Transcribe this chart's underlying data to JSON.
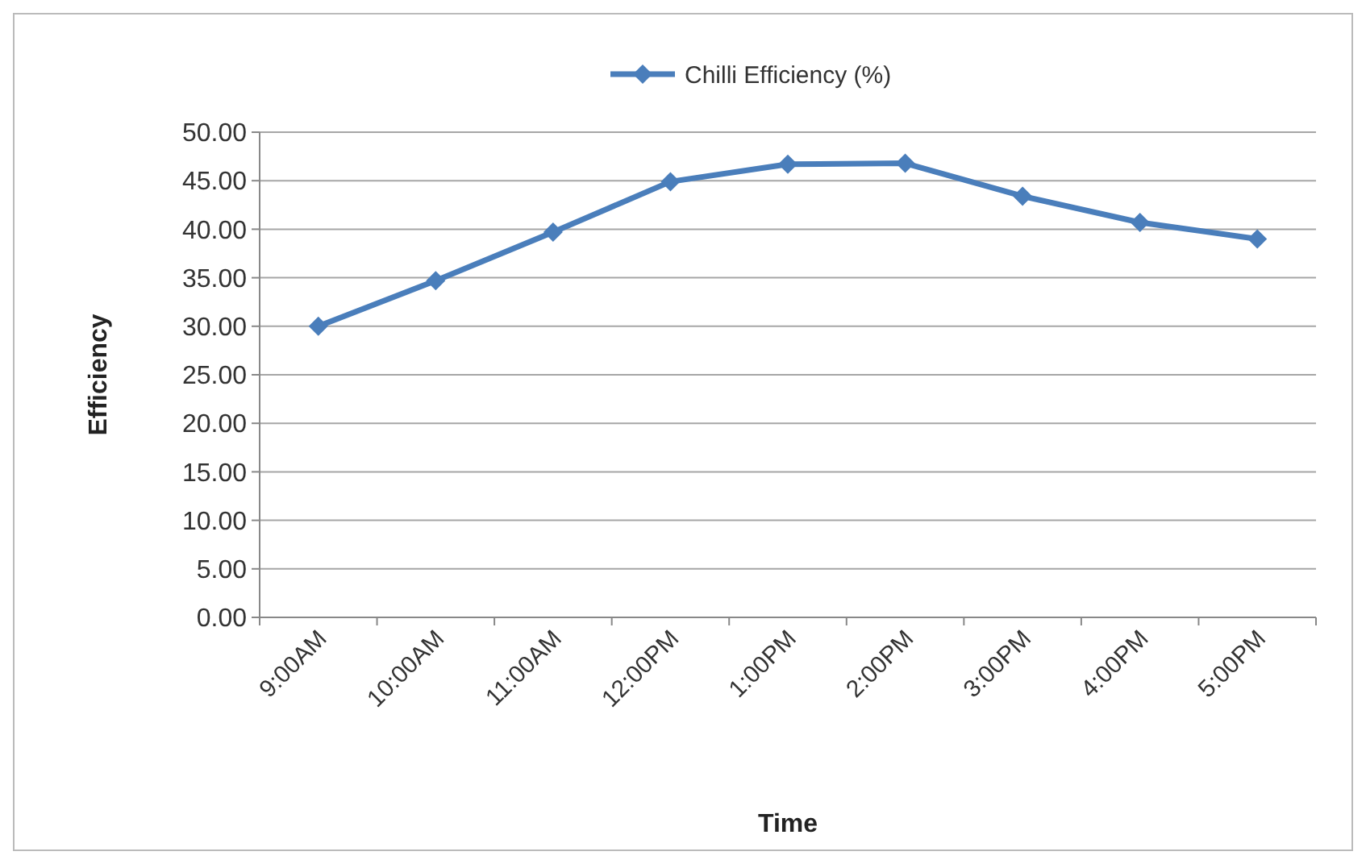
{
  "chart_data": {
    "type": "line",
    "xlabel": "Time",
    "ylabel": "Efficiency",
    "categories": [
      "9:00AM",
      "10:00AM",
      "11:00AM",
      "12:00PM",
      "1:00PM",
      "2:00PM",
      "3:00PM",
      "4:00PM",
      "5:00PM"
    ],
    "series": [
      {
        "name": "Chilli Efficiency (%)",
        "color": "#4a7ebb",
        "values": [
          30.0,
          34.7,
          39.7,
          44.9,
          46.7,
          46.8,
          43.4,
          40.7,
          39.0
        ]
      }
    ],
    "ylim": [
      0,
      50
    ],
    "yticks": [
      {
        "value": 0,
        "label": "0.00"
      },
      {
        "value": 5,
        "label": "5.00"
      },
      {
        "value": 10,
        "label": "10.00"
      },
      {
        "value": 15,
        "label": "15.00"
      },
      {
        "value": 20,
        "label": "20.00"
      },
      {
        "value": 25,
        "label": "25.00"
      },
      {
        "value": 30,
        "label": "30.00"
      },
      {
        "value": 35,
        "label": "35.00"
      },
      {
        "value": 40,
        "label": "40.00"
      },
      {
        "value": 45,
        "label": "45.00"
      },
      {
        "value": 50,
        "label": "50.00"
      }
    ],
    "grid": "y",
    "legend": "top",
    "marker": "diamond"
  }
}
